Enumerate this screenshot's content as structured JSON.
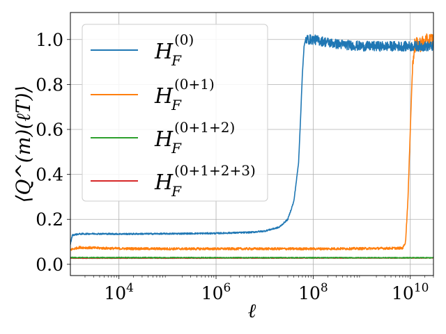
{
  "chart_data": {
    "type": "line",
    "xscale": "log",
    "xlim": [
      1000,
      30000000000
    ],
    "ylim": [
      -0.05,
      1.12
    ],
    "xlabel": "ℓ",
    "ylabel": "⟨Q^(m)(ℓT)⟩",
    "grid": true,
    "legend_position": "top-left",
    "x_ticks": [
      {
        "value": 10000,
        "base": "10",
        "exp": "4"
      },
      {
        "value": 1000000,
        "base": "10",
        "exp": "6"
      },
      {
        "value": 100000000,
        "base": "10",
        "exp": "8"
      },
      {
        "value": 10000000000,
        "base": "10",
        "exp": "10"
      }
    ],
    "y_ticks": [
      {
        "value": 0.0,
        "label": "0.0"
      },
      {
        "value": 0.2,
        "label": "0.2"
      },
      {
        "value": 0.4,
        "label": "0.4"
      },
      {
        "value": 0.6,
        "label": "0.6"
      },
      {
        "value": 0.8,
        "label": "0.8"
      },
      {
        "value": 1.0,
        "label": "1.0"
      }
    ],
    "series": [
      {
        "name": "H_F^(0)",
        "legend_base": "H",
        "legend_sub": "F",
        "legend_sup": "(0)",
        "color": "#1f77b4",
        "points": [
          [
            1000,
            0.09
          ],
          [
            1100,
            0.13
          ],
          [
            1500,
            0.135
          ],
          [
            3000,
            0.136
          ],
          [
            10000,
            0.135
          ],
          [
            100000,
            0.136
          ],
          [
            1000000,
            0.138
          ],
          [
            5000000,
            0.142
          ],
          [
            10000000,
            0.148
          ],
          [
            20000000,
            0.165
          ],
          [
            30000000,
            0.2
          ],
          [
            40000000,
            0.28
          ],
          [
            50000000,
            0.45
          ],
          [
            55000000,
            0.65
          ],
          [
            60000000,
            0.85
          ],
          [
            65000000,
            0.97
          ],
          [
            70000000,
            1.0
          ],
          [
            100000000,
            1.0
          ],
          [
            300000000,
            0.98
          ],
          [
            1000000000,
            0.97
          ],
          [
            3000000000,
            0.97
          ],
          [
            10000000000,
            0.97
          ],
          [
            30000000000,
            0.97
          ]
        ],
        "noise": 0.022,
        "noise_start": 70000000
      },
      {
        "name": "H_F^(0+1)",
        "legend_base": "H",
        "legend_sub": "F",
        "legend_sup": "(0+1)",
        "color": "#ff7f0e",
        "points": [
          [
            1000,
            0.065
          ],
          [
            1500,
            0.075
          ],
          [
            3000,
            0.073
          ],
          [
            10000,
            0.07
          ],
          [
            100000,
            0.069
          ],
          [
            1000000,
            0.069
          ],
          [
            100000000,
            0.069
          ],
          [
            1000000000,
            0.07
          ],
          [
            7000000000,
            0.072
          ],
          [
            8000000000,
            0.1
          ],
          [
            9000000000,
            0.3
          ],
          [
            10000000000,
            0.6
          ],
          [
            11000000000,
            0.85
          ],
          [
            12000000000,
            0.97
          ],
          [
            30000000000,
            1.0
          ]
        ],
        "noise": 0.035,
        "noise_start": 11000000000
      },
      {
        "name": "H_F^(0+1+2)",
        "legend_base": "H",
        "legend_sub": "F",
        "legend_sup": "(0+1+2)",
        "color": "#2ca02c",
        "points": [
          [
            1000,
            0.03
          ],
          [
            30000000000,
            0.029
          ]
        ],
        "noise": 0.002,
        "noise_start": 1000
      },
      {
        "name": "H_F^(0+1+2+3)",
        "legend_base": "H",
        "legend_sub": "F",
        "legend_sup": "(0+1+2+3)",
        "color": "#d62728",
        "points": [
          [
            1000,
            0.027
          ],
          [
            30000000000,
            0.028
          ]
        ],
        "noise": 0.001,
        "noise_start": 1000
      }
    ]
  }
}
